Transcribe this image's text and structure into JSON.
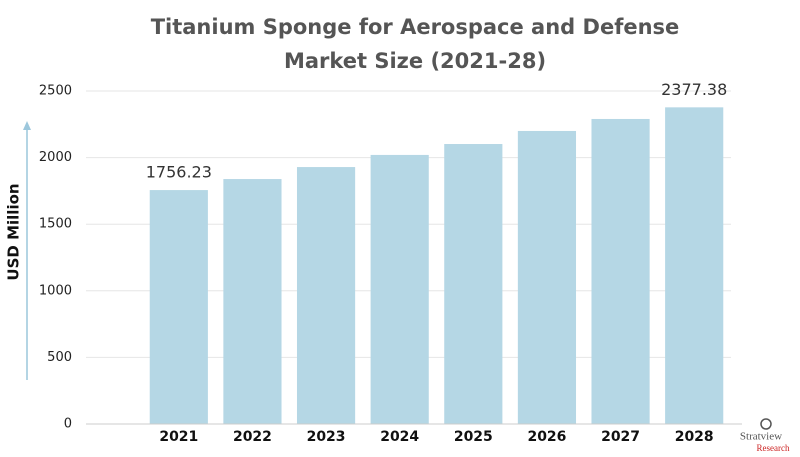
{
  "chart_data": {
    "type": "bar",
    "title": "Titanium Sponge for Aerospace and Defense Market Size (2021-28)",
    "y_label": "USD Million",
    "categories": [
      "2021",
      "2022",
      "2023",
      "2024",
      "2025",
      "2026",
      "2027",
      "2028"
    ],
    "values": [
      1756.23,
      1839,
      1929,
      2020,
      2102,
      2200,
      2290,
      2377.38
    ],
    "value_labels": [
      "1756.23",
      null,
      null,
      null,
      null,
      null,
      null,
      "2377.38"
    ],
    "color": "#b5d7e5",
    "ylim": [
      0,
      2500
    ],
    "yticks": [
      0,
      500,
      1000,
      1500,
      2000,
      2500
    ],
    "grid": true
  },
  "logo": {
    "name": "Stratview",
    "sub": "Research"
  }
}
